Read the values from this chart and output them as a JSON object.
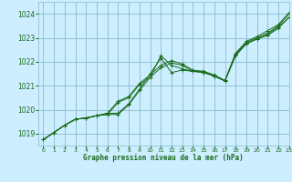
{
  "title": "Graphe pression niveau de la mer (hPa)",
  "background_color": "#cceeff",
  "grid_color": "#88bbcc",
  "line_color": "#1a6b1a",
  "text_color": "#1a6b1a",
  "xlim": [
    -0.5,
    23
  ],
  "ylim": [
    1018.5,
    1024.5
  ],
  "xticks": [
    0,
    1,
    2,
    3,
    4,
    5,
    6,
    7,
    8,
    9,
    10,
    11,
    12,
    13,
    14,
    15,
    16,
    17,
    18,
    19,
    20,
    21,
    22,
    23
  ],
  "yticks": [
    1019,
    1020,
    1021,
    1022,
    1023,
    1024
  ],
  "series": [
    [
      1018.75,
      1019.05,
      1019.35,
      1019.6,
      1019.65,
      1019.75,
      1019.8,
      1019.8,
      1020.2,
      1020.8,
      1021.35,
      1022.25,
      1021.85,
      1021.7,
      1021.6,
      1021.55,
      1021.4,
      1021.2,
      1022.3,
      1022.75,
      1022.95,
      1023.15,
      1023.45,
      1023.85
    ],
    [
      1018.75,
      1019.05,
      1019.35,
      1019.6,
      1019.65,
      1019.75,
      1019.8,
      1020.3,
      1020.5,
      1021.05,
      1021.35,
      1021.75,
      1021.95,
      1021.85,
      1021.6,
      1021.55,
      1021.4,
      1021.2,
      1022.35,
      1022.8,
      1023.0,
      1023.2,
      1023.5,
      1024.0
    ],
    [
      1018.75,
      1019.05,
      1019.35,
      1019.6,
      1019.65,
      1019.75,
      1019.85,
      1020.35,
      1020.55,
      1021.1,
      1021.45,
      1021.85,
      1022.05,
      1021.9,
      1021.65,
      1021.6,
      1021.45,
      1021.22,
      1022.35,
      1022.85,
      1023.05,
      1023.3,
      1023.55,
      1024.05
    ],
    [
      1018.75,
      1019.05,
      1019.35,
      1019.6,
      1019.65,
      1019.75,
      1019.85,
      1019.85,
      1020.25,
      1020.85,
      1021.5,
      1022.15,
      1021.55,
      1021.65,
      1021.6,
      1021.6,
      1021.4,
      1021.2,
      1022.25,
      1022.75,
      1022.95,
      1023.1,
      1023.4,
      1023.85
    ]
  ]
}
